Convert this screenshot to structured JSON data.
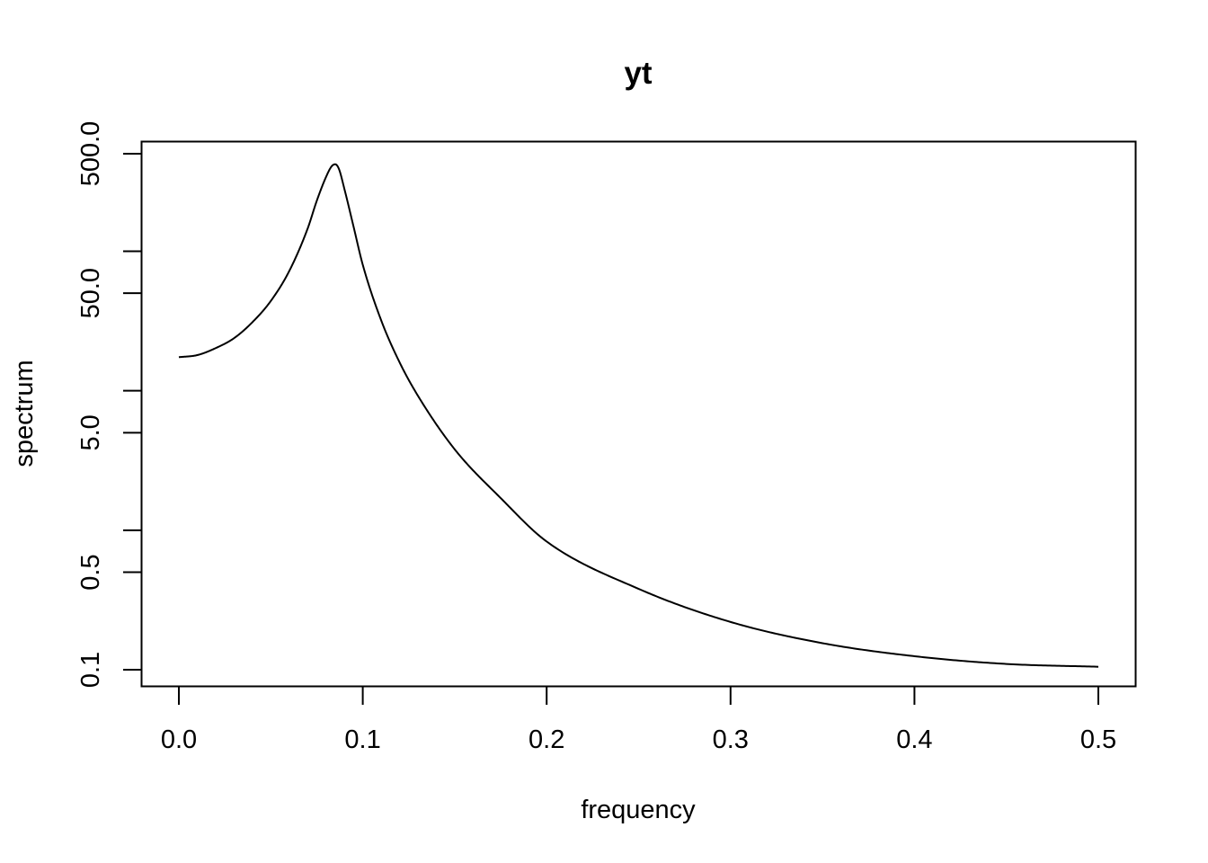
{
  "chart_data": {
    "type": "line",
    "title": "yt",
    "xlabel": "frequency",
    "ylabel": "spectrum",
    "y_scale": "log",
    "xlim": [
      0.0,
      0.5
    ],
    "ylim": [
      0.1,
      500.0
    ],
    "x_ticks": [
      0.0,
      0.1,
      0.2,
      0.3,
      0.4,
      0.5
    ],
    "x_tick_labels": [
      "0.0",
      "0.1",
      "0.2",
      "0.3",
      "0.4",
      "0.5"
    ],
    "y_ticks": [
      0.1,
      0.5,
      5.0,
      50.0,
      500.0
    ],
    "y_tick_labels": [
      "0.1",
      "0.5",
      "5.0",
      "50.0",
      "500.0"
    ],
    "y_minor_ticks": [
      1.0,
      10.0,
      100.0
    ],
    "line_color": "#000000",
    "grid": false,
    "series": [
      {
        "x": [
          0.0,
          0.01,
          0.02,
          0.03,
          0.04,
          0.05,
          0.06,
          0.07,
          0.075,
          0.08,
          0.083,
          0.085,
          0.087,
          0.09,
          0.095,
          0.1,
          0.11,
          0.12,
          0.13,
          0.15,
          0.175,
          0.2,
          0.25,
          0.3,
          0.35,
          0.4,
          0.45,
          0.5
        ],
        "y": [
          17.4,
          18.0,
          20.2,
          23.8,
          31.0,
          44.0,
          72.0,
          145.0,
          230.0,
          340.0,
          405.0,
          420.0,
          390.0,
          280.0,
          150.0,
          80.0,
          32.0,
          16.0,
          9.2,
          3.8,
          1.7,
          0.83,
          0.38,
          0.22,
          0.155,
          0.125,
          0.11,
          0.105
        ]
      }
    ]
  }
}
